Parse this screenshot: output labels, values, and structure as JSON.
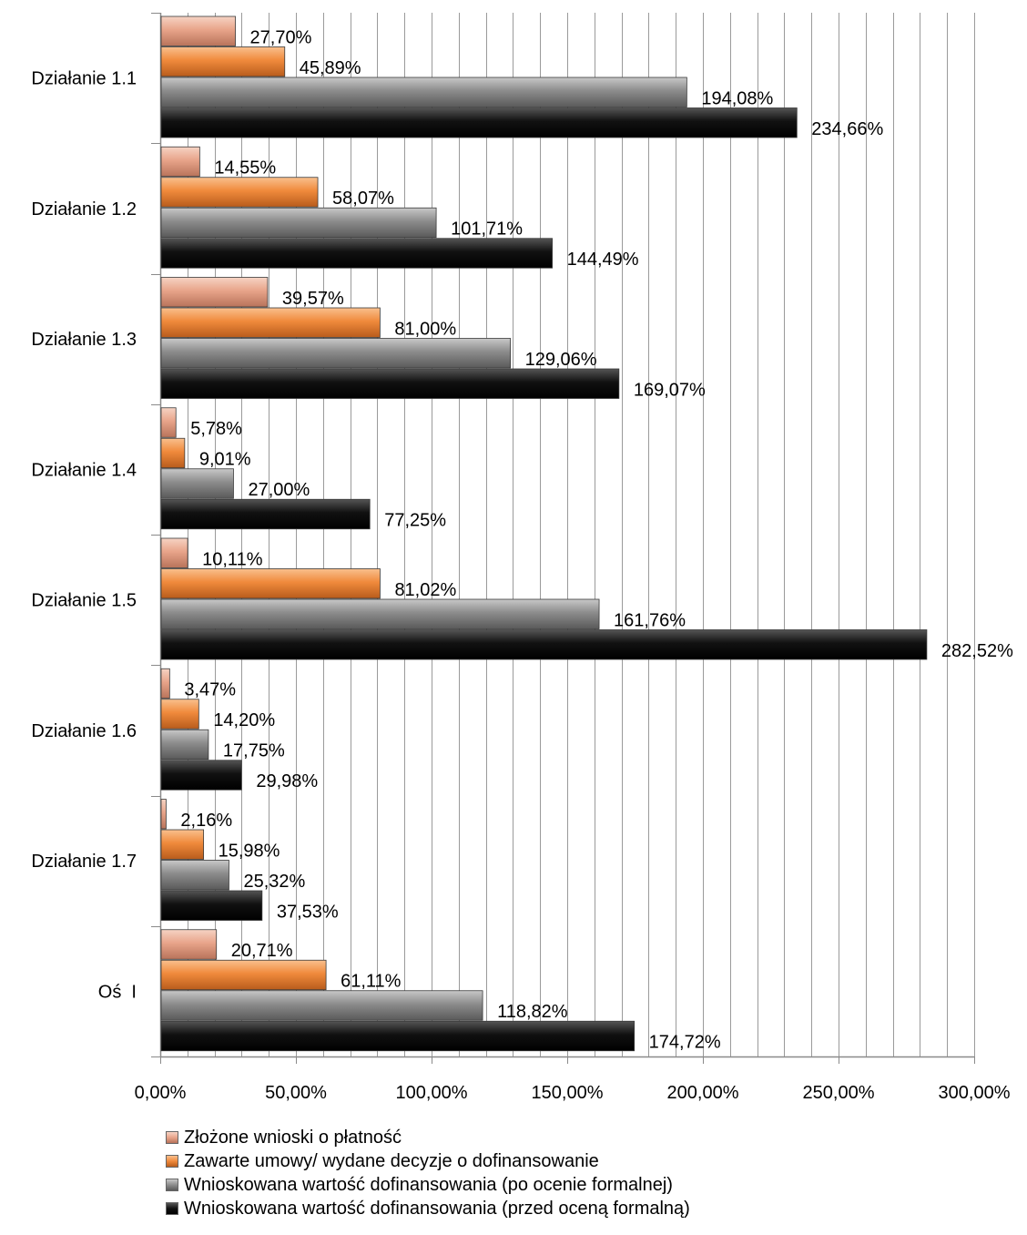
{
  "chart_data": {
    "type": "bar",
    "orientation": "horizontal",
    "categories": [
      "Działanie 1.1",
      "Działanie 1.2",
      "Działanie 1.3",
      "Działanie 1.4",
      "Działanie 1.5",
      "Działanie 1.6",
      "Działanie 1.7",
      "Oś  I"
    ],
    "series": [
      {
        "name": "Złożone wnioski o płatność",
        "values": [
          27.7,
          14.55,
          39.57,
          5.78,
          10.11,
          3.47,
          2.16,
          20.71
        ],
        "labels": [
          "27,70%",
          "14,55%",
          "39,57%",
          "5,78%",
          "10,11%",
          "3,47%",
          "2,16%",
          "20,71%"
        ],
        "color": "#e8a48a"
      },
      {
        "name": "Zawarte umowy/ wydane decyzje o dofinansowanie",
        "values": [
          45.89,
          58.07,
          81.0,
          9.01,
          81.02,
          14.2,
          15.98,
          61.11
        ],
        "labels": [
          "45,89%",
          "58,07%",
          "81,00%",
          "9,01%",
          "81,02%",
          "14,20%",
          "15,98%",
          "61,11%"
        ],
        "color": "#f08a3c"
      },
      {
        "name": "Wnioskowana wartość dofinansowania (po ocenie formalnej)",
        "values": [
          194.08,
          101.71,
          129.06,
          27.0,
          161.76,
          17.75,
          25.32,
          118.82
        ],
        "labels": [
          "194,08%",
          "101,71%",
          "129,06%",
          "27,00%",
          "161,76%",
          "17,75%",
          "25,32%",
          "118,82%"
        ],
        "color": "#8c8c8c"
      },
      {
        "name": "Wnioskowana wartość dofinansowania (przed oceną formalną)",
        "values": [
          234.66,
          144.49,
          169.07,
          77.25,
          282.52,
          29.98,
          37.53,
          174.72
        ],
        "labels": [
          "234,66%",
          "144,49%",
          "169,07%",
          "77,25%",
          "282,52%",
          "29,98%",
          "37,53%",
          "174,72%"
        ],
        "color": "#111111"
      }
    ],
    "xlim": [
      0,
      300
    ],
    "xticks": [
      0,
      50,
      100,
      150,
      200,
      250,
      300
    ],
    "xtick_labels": [
      "0,00%",
      "50,00%",
      "100,00%",
      "150,00%",
      "200,00%",
      "250,00%",
      "300,00%"
    ],
    "minor_grid_step": 10,
    "grid": true,
    "legend_position": "bottom"
  }
}
